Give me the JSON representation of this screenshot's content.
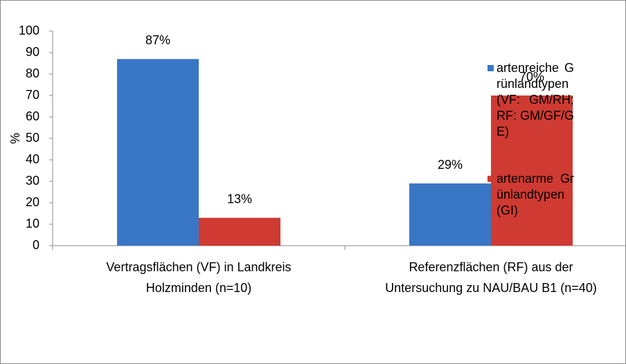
{
  "chart_data": {
    "type": "bar",
    "y_label": "%",
    "categories": [
      "Vertragsflächen (VF) in Landkreis Holzminden (n=10)",
      "Referenzflächen (RF) aus der Untersuchung zu NAU/BAU B1 (n=40)"
    ],
    "series": [
      {
        "name": "artenreiche Grünlandtypen (VF: GM/RH; RF: GM/GF/GE)",
        "color": "#3a76c6",
        "values": [
          87,
          29
        ],
        "value_labels": [
          "87%",
          "29%"
        ]
      },
      {
        "name": "artenarme Grünlandtypen (GI)",
        "color": "#cf3a32",
        "values": [
          13,
          70
        ],
        "value_labels": [
          "13%",
          "70%"
        ]
      }
    ],
    "ylim": [
      0,
      100
    ],
    "yticks": [
      0,
      10,
      20,
      30,
      40,
      50,
      60,
      70,
      80,
      90,
      100
    ]
  }
}
